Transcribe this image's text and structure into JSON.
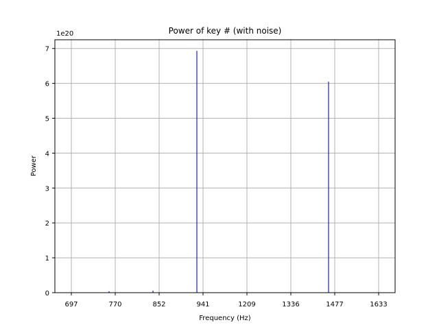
{
  "chart_data": {
    "type": "bar",
    "title": "Power of key # (with noise)",
    "xlabel": "Frequency (Hz)",
    "ylabel": "Power",
    "y_offset_label": "1e20",
    "grid": true,
    "categories": [
      "697",
      "770",
      "852",
      "941",
      "1209",
      "1336",
      "1477",
      "1633"
    ],
    "ylim": [
      0,
      7.25
    ],
    "yticks": [
      "0",
      "1",
      "2",
      "3",
      "4",
      "5",
      "6",
      "7"
    ],
    "series": [
      {
        "values": [
          0.0,
          0.04,
          0.06,
          6.93,
          0.0,
          0.0,
          6.05,
          0.0
        ]
      }
    ],
    "colors": {
      "spike": "#1f1fb4",
      "grid": "#b0b0b0",
      "axis": "#000000"
    }
  }
}
